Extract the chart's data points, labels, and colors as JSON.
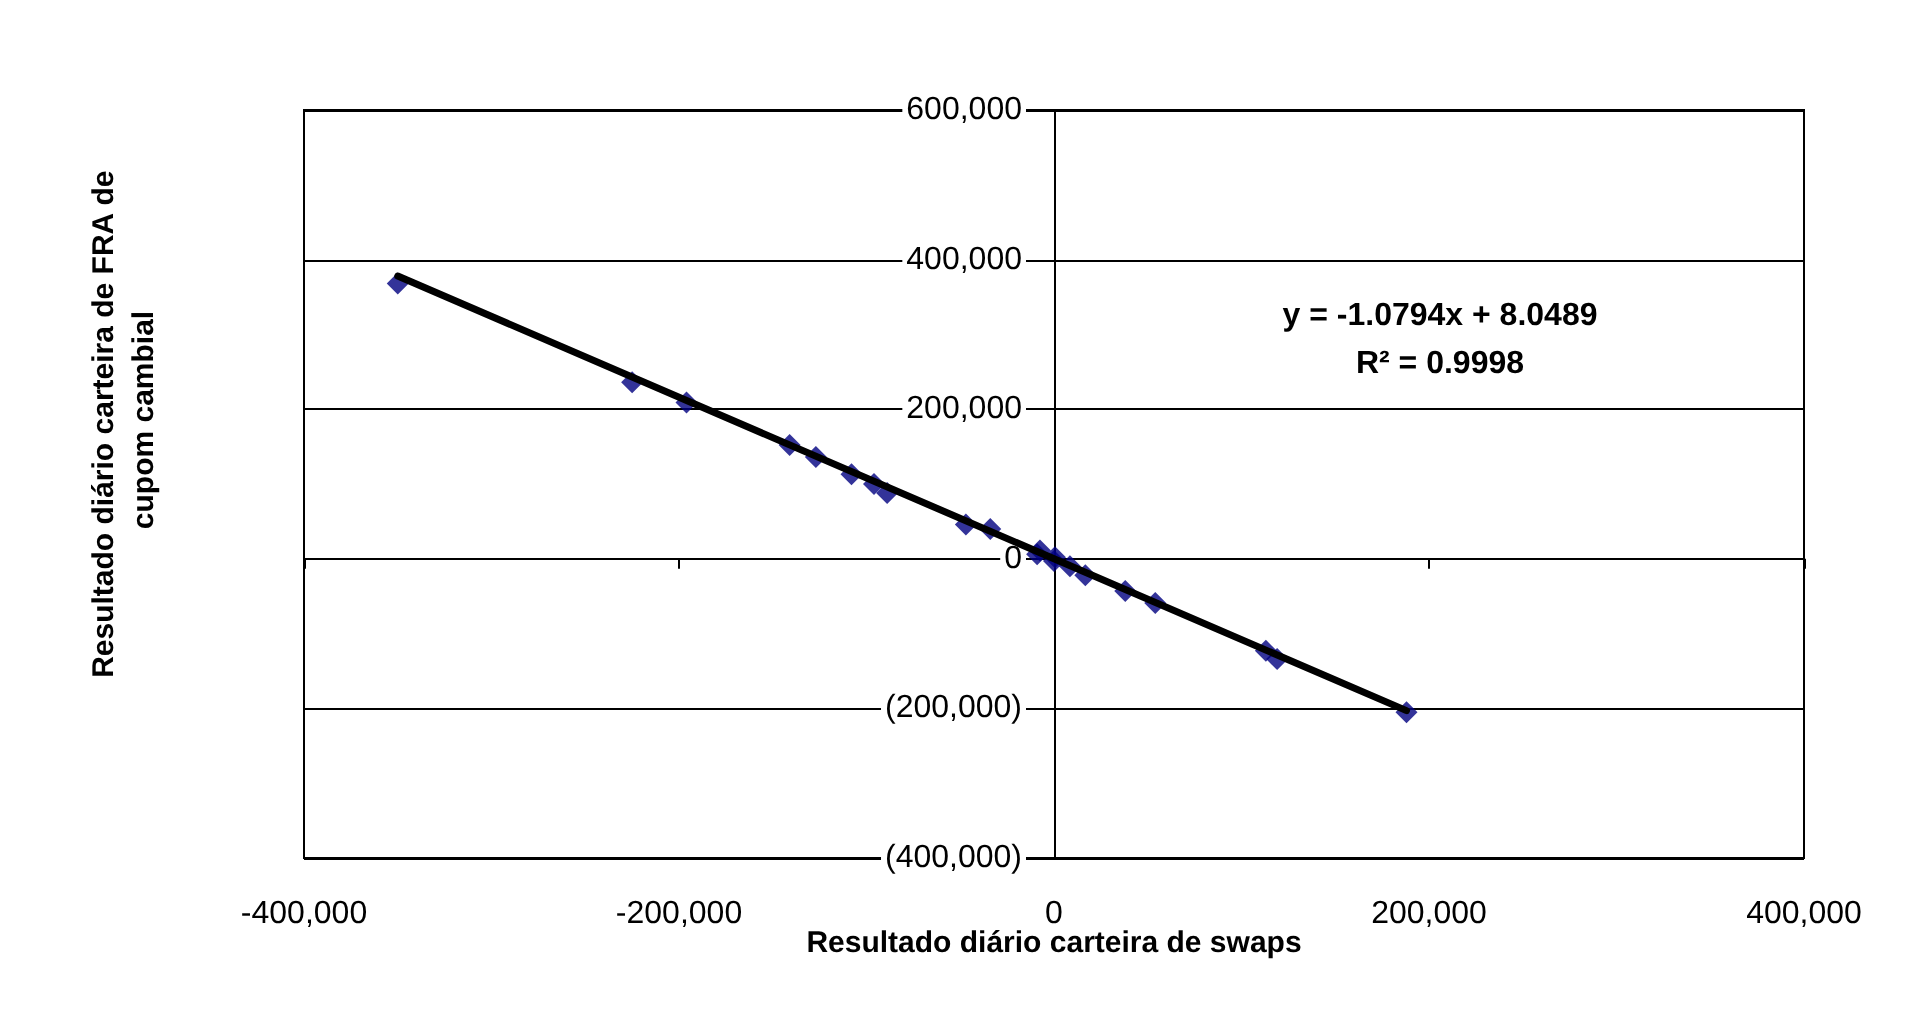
{
  "chart_data": {
    "type": "scatter",
    "xlabel": "Resultado diário carteira de swaps",
    "ylabel": "Resultado diário carteira de FRA de cupom cambial",
    "annotations": [
      "y = -1.0794x + 8.0489",
      "R² = 0.9998"
    ],
    "xlim": [
      -400000,
      400000
    ],
    "xticks": [
      {
        "value": -400000,
        "label": "-400,000"
      },
      {
        "value": -200000,
        "label": "-200,000"
      },
      0,
      {
        "value": 200000,
        "label": "200,000"
      },
      {
        "value": 400000,
        "label": "400,000"
      }
    ],
    "ylim": [
      -400000,
      600000
    ],
    "yticks": [
      {
        "value": -400000,
        "label": "(400,000)"
      },
      {
        "value": -200000,
        "label": "(200,000)"
      },
      0,
      {
        "value": 200000,
        "label": "200,000"
      },
      {
        "value": 400000,
        "label": "400,000"
      },
      {
        "value": 600000,
        "label": "600,000"
      }
    ],
    "grid": "y",
    "series": [
      {
        "type": "scatter",
        "color": "#000080",
        "marker": "diamond",
        "x": [
          -350000,
          -225000,
          -196000,
          -141000,
          -127000,
          -108000,
          -96000,
          -89000,
          -47000,
          -34000,
          -9000,
          -7500,
          0,
          500,
          8500,
          16700,
          38000,
          54000,
          113000,
          119000,
          188000
        ],
        "values": [
          368000,
          236000,
          209000,
          152000,
          136000,
          113000,
          100000,
          88000,
          46000,
          40000,
          6000,
          11000,
          -3000,
          2000,
          -10000,
          -22000,
          -43000,
          -59000,
          -123000,
          -134000,
          -205000
        ]
      },
      {
        "type": "line",
        "color": "#000000",
        "marker": "none",
        "x": [
          -350000,
          188000
        ],
        "values": [
          378000,
          -203000
        ]
      }
    ]
  }
}
